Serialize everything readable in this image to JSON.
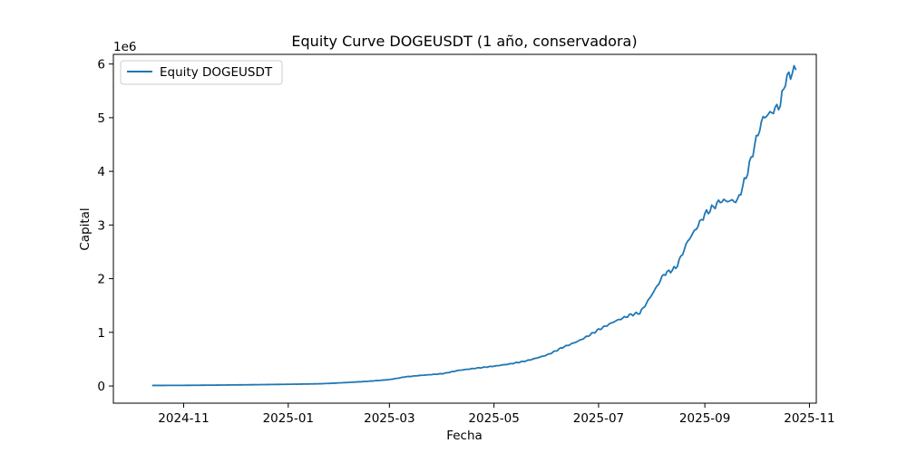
{
  "chart_data": {
    "type": "line",
    "title": "Equity Curve DOGEUSDT (1 año, conservadora)",
    "xlabel": "Fecha",
    "ylabel": "Capital",
    "y_offset_text": "1e6",
    "y_multiplier": 1000000,
    "xlim": [
      "2024-09-21",
      "2025-11-05"
    ],
    "ylim": [
      -320000,
      6180000
    ],
    "x_ticks": [
      {
        "date": "2024-11-01",
        "label": "2024-11"
      },
      {
        "date": "2025-01-01",
        "label": "2025-01"
      },
      {
        "date": "2025-03-01",
        "label": "2025-03"
      },
      {
        "date": "2025-05-01",
        "label": "2025-05"
      },
      {
        "date": "2025-07-01",
        "label": "2025-07"
      },
      {
        "date": "2025-09-01",
        "label": "2025-09"
      },
      {
        "date": "2025-11-01",
        "label": "2025-11"
      }
    ],
    "y_ticks": [
      {
        "value": 0,
        "label": "0"
      },
      {
        "value": 1000000,
        "label": "1"
      },
      {
        "value": 2000000,
        "label": "2"
      },
      {
        "value": 3000000,
        "label": "3"
      },
      {
        "value": 4000000,
        "label": "4"
      },
      {
        "value": 5000000,
        "label": "5"
      },
      {
        "value": 6000000,
        "label": "6"
      }
    ],
    "grid": false,
    "legend_position": "upper-left",
    "series": [
      {
        "name": "Equity DOGEUSDT",
        "color": "#1f77b4",
        "points": [
          [
            "2024-10-14",
            10000
          ],
          [
            "2024-11-01",
            12000
          ],
          [
            "2024-11-15",
            15000
          ],
          [
            "2024-12-01",
            20000
          ],
          [
            "2024-12-15",
            25000
          ],
          [
            "2025-01-01",
            32000
          ],
          [
            "2025-01-20",
            42000
          ],
          [
            "2025-02-01",
            60000
          ],
          [
            "2025-02-15",
            85000
          ],
          [
            "2025-03-01",
            120000
          ],
          [
            "2025-03-10",
            170000
          ],
          [
            "2025-03-20",
            200000
          ],
          [
            "2025-04-01",
            230000
          ],
          [
            "2025-04-10",
            290000
          ],
          [
            "2025-04-20",
            330000
          ],
          [
            "2025-05-01",
            370000
          ],
          [
            "2025-05-10",
            410000
          ],
          [
            "2025-05-20",
            470000
          ],
          [
            "2025-06-01",
            580000
          ],
          [
            "2025-06-10",
            720000
          ],
          [
            "2025-06-20",
            850000
          ],
          [
            "2025-07-01",
            1050000
          ],
          [
            "2025-07-10",
            1200000
          ],
          [
            "2025-07-20",
            1330000
          ],
          [
            "2025-07-25",
            1360000
          ],
          [
            "2025-08-01",
            1700000
          ],
          [
            "2025-08-08",
            2080000
          ],
          [
            "2025-08-15",
            2200000
          ],
          [
            "2025-08-22",
            2700000
          ],
          [
            "2025-09-01",
            3200000
          ],
          [
            "2025-09-10",
            3450000
          ],
          [
            "2025-09-20",
            3450000
          ],
          [
            "2025-09-25",
            3900000
          ],
          [
            "2025-10-01",
            4600000
          ],
          [
            "2025-10-05",
            5000000
          ],
          [
            "2025-10-10",
            5100000
          ],
          [
            "2025-10-15",
            5250000
          ],
          [
            "2025-10-18",
            5700000
          ],
          [
            "2025-10-22",
            5850000
          ],
          [
            "2025-10-24",
            5900000
          ]
        ]
      }
    ]
  }
}
